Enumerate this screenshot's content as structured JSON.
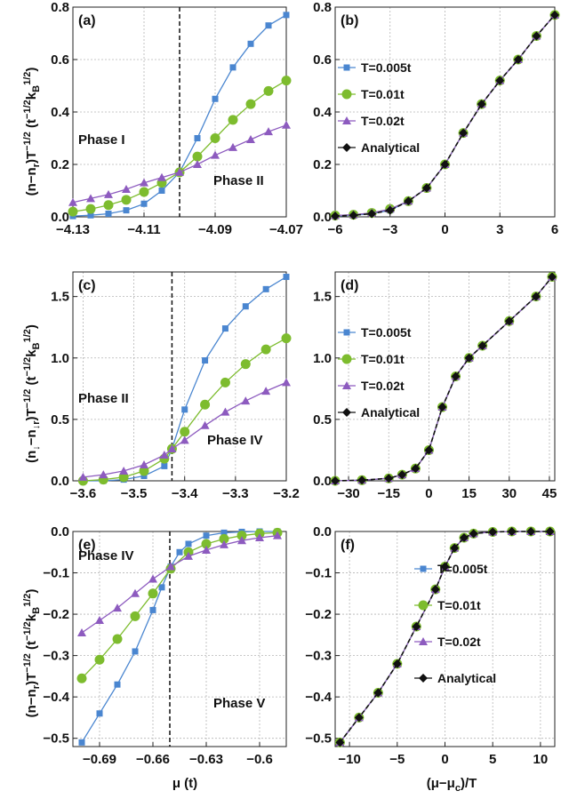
{
  "chart_data": [
    {
      "panel": "(a)",
      "type": "line",
      "xlim": [
        -4.13,
        -4.07
      ],
      "ylim": [
        0,
        0.8
      ],
      "xticks": [
        -4.13,
        -4.11,
        -4.09,
        -4.07
      ],
      "xtick_labels": [
        "−4.13",
        "−4.11",
        "−4.09",
        "−4.07"
      ],
      "yticks": [
        0,
        0.2,
        0.4,
        0.6,
        0.8
      ],
      "ytick_labels": [
        "0.0",
        "0.2",
        "0.4",
        "0.6",
        "0.8"
      ],
      "critical_x": -4.1,
      "annotations": [
        "Phase I",
        "Phase II"
      ],
      "grid": true,
      "series": [
        {
          "color": "#4a86d0",
          "marker": "square",
          "x": [
            -4.13,
            -4.125,
            -4.12,
            -4.115,
            -4.11,
            -4.105,
            -4.1,
            -4.095,
            -4.09,
            -4.085,
            -4.08,
            -4.075,
            -4.07
          ],
          "y": [
            0.003,
            0.006,
            0.012,
            0.025,
            0.05,
            0.1,
            0.17,
            0.3,
            0.45,
            0.57,
            0.66,
            0.73,
            0.77
          ]
        },
        {
          "color": "#7dbc2e",
          "marker": "circle",
          "x": [
            -4.13,
            -4.125,
            -4.12,
            -4.115,
            -4.11,
            -4.105,
            -4.1,
            -4.095,
            -4.09,
            -4.085,
            -4.08,
            -4.075,
            -4.07
          ],
          "y": [
            0.02,
            0.03,
            0.045,
            0.065,
            0.095,
            0.13,
            0.17,
            0.23,
            0.3,
            0.37,
            0.43,
            0.48,
            0.52
          ]
        },
        {
          "color": "#8d5bbf",
          "marker": "triangle",
          "x": [
            -4.13,
            -4.125,
            -4.12,
            -4.115,
            -4.11,
            -4.105,
            -4.1,
            -4.095,
            -4.09,
            -4.085,
            -4.08,
            -4.075,
            -4.07
          ],
          "y": [
            0.055,
            0.07,
            0.085,
            0.105,
            0.13,
            0.15,
            0.17,
            0.2,
            0.235,
            0.265,
            0.295,
            0.325,
            0.35
          ]
        }
      ]
    },
    {
      "panel": "(b)",
      "type": "line",
      "xlim": [
        -6,
        6
      ],
      "ylim": [
        0,
        0.8
      ],
      "xticks": [
        -6,
        -3,
        0,
        3,
        6
      ],
      "xtick_labels": [
        "−6",
        "−3",
        "0",
        "3",
        "6"
      ],
      "yticks": [
        0,
        0.2,
        0.4,
        0.6,
        0.8
      ],
      "ytick_labels": [
        "0.0",
        "0.2",
        "0.4",
        "0.6",
        "0.8"
      ],
      "grid": true,
      "legend_position": "left",
      "series": [
        {
          "name": "T=0.005t",
          "color": "#4a86d0",
          "marker": "square",
          "x": [
            -6,
            -5,
            -4,
            -3,
            -2,
            -1,
            0,
            1,
            2,
            3,
            4,
            5,
            6
          ],
          "y": [
            0.003,
            0.006,
            0.012,
            0.025,
            0.06,
            0.11,
            0.2,
            0.32,
            0.43,
            0.52,
            0.6,
            0.69,
            0.77
          ]
        },
        {
          "name": "T=0.01t",
          "color": "#7dbc2e",
          "marker": "circle",
          "x": [
            -6,
            -5,
            -4,
            -3,
            -2,
            -1,
            0,
            1,
            2,
            3,
            4,
            5,
            6
          ],
          "y": [
            0.005,
            0.008,
            0.015,
            0.03,
            0.06,
            0.11,
            0.2,
            0.32,
            0.43,
            0.52,
            0.6,
            0.69,
            0.77
          ]
        },
        {
          "name": "T=0.02t",
          "color": "#8d5bbf",
          "marker": "triangle",
          "x": [
            -6,
            -5,
            -4,
            -3,
            -2,
            -1,
            0,
            1,
            2,
            3,
            4,
            5,
            6
          ],
          "y": [
            0.005,
            0.008,
            0.015,
            0.03,
            0.06,
            0.11,
            0.2,
            0.32,
            0.43,
            0.52,
            0.6,
            0.69,
            0.77
          ]
        },
        {
          "name": "Analytical",
          "color": "#111111",
          "marker": "diamond",
          "x": [
            -6,
            -5,
            -4,
            -3,
            -2,
            -1,
            0,
            1,
            2,
            3,
            4,
            5,
            6
          ],
          "y": [
            0.003,
            0.006,
            0.012,
            0.025,
            0.06,
            0.11,
            0.2,
            0.32,
            0.43,
            0.52,
            0.6,
            0.69,
            0.77
          ]
        }
      ]
    },
    {
      "panel": "(c)",
      "type": "line",
      "xlim": [
        -3.62,
        -3.2
      ],
      "ylim": [
        0,
        1.7
      ],
      "xticks": [
        -3.6,
        -3.5,
        -3.4,
        -3.3,
        -3.2
      ],
      "xtick_labels": [
        "−3.6",
        "−3.5",
        "−3.4",
        "−3.3",
        "−3.2"
      ],
      "yticks": [
        0,
        0.5,
        1.0,
        1.5
      ],
      "ytick_labels": [
        "0.0",
        "0.5",
        "1.0",
        "1.5"
      ],
      "critical_x": -3.425,
      "annotations": [
        "Phase II",
        "Phase IV"
      ],
      "grid": true,
      "series": [
        {
          "color": "#4a86d0",
          "marker": "square",
          "x": [
            -3.6,
            -3.56,
            -3.52,
            -3.48,
            -3.44,
            -3.425,
            -3.4,
            -3.36,
            -3.32,
            -3.28,
            -3.24,
            -3.2
          ],
          "y": [
            0.0,
            0.0,
            0.01,
            0.04,
            0.12,
            0.26,
            0.58,
            0.98,
            1.24,
            1.42,
            1.56,
            1.66
          ]
        },
        {
          "color": "#7dbc2e",
          "marker": "circle",
          "x": [
            -3.6,
            -3.56,
            -3.52,
            -3.48,
            -3.44,
            -3.425,
            -3.4,
            -3.36,
            -3.32,
            -3.28,
            -3.24,
            -3.2
          ],
          "y": [
            0.0,
            0.01,
            0.03,
            0.08,
            0.18,
            0.26,
            0.4,
            0.62,
            0.8,
            0.95,
            1.07,
            1.16
          ]
        },
        {
          "color": "#8d5bbf",
          "marker": "triangle",
          "x": [
            -3.6,
            -3.56,
            -3.52,
            -3.48,
            -3.44,
            -3.425,
            -3.4,
            -3.36,
            -3.32,
            -3.28,
            -3.24,
            -3.2
          ],
          "y": [
            0.03,
            0.05,
            0.08,
            0.13,
            0.21,
            0.26,
            0.33,
            0.45,
            0.56,
            0.65,
            0.73,
            0.8
          ]
        }
      ]
    },
    {
      "panel": "(d)",
      "type": "line",
      "xlim": [
        -35,
        47
      ],
      "ylim": [
        0,
        1.7
      ],
      "xticks": [
        -30,
        -15,
        0,
        15,
        30,
        45
      ],
      "xtick_labels": [
        "−30",
        "−15",
        "0",
        "15",
        "30",
        "45"
      ],
      "yticks": [
        0,
        0.5,
        1.0,
        1.5
      ],
      "ytick_labels": [
        "0.0",
        "0.5",
        "1.0",
        "1.5"
      ],
      "grid": true,
      "legend_position": "left",
      "series": [
        {
          "name": "T=0.005t",
          "color": "#4a86d0",
          "marker": "square",
          "x": [
            -35,
            -25,
            -15,
            -10,
            -5,
            0,
            5,
            10,
            15,
            20,
            30,
            40,
            46
          ],
          "y": [
            0.0,
            0.005,
            0.02,
            0.05,
            0.1,
            0.25,
            0.6,
            0.85,
            1.0,
            1.1,
            1.3,
            1.5,
            1.66
          ]
        },
        {
          "name": "T=0.01t",
          "color": "#7dbc2e",
          "marker": "circle",
          "x": [
            -35,
            -25,
            -15,
            -10,
            -5,
            0,
            5,
            10,
            15,
            20,
            30,
            40,
            46
          ],
          "y": [
            0.0,
            0.005,
            0.02,
            0.05,
            0.1,
            0.25,
            0.6,
            0.85,
            1.0,
            1.1,
            1.3,
            1.5,
            1.66
          ]
        },
        {
          "name": "T=0.02t",
          "color": "#8d5bbf",
          "marker": "triangle",
          "x": [
            -35,
            -25,
            -15,
            -10,
            -5,
            0,
            5,
            10,
            15,
            20,
            30,
            40,
            46
          ],
          "y": [
            0.0,
            0.005,
            0.02,
            0.05,
            0.1,
            0.25,
            0.6,
            0.85,
            1.0,
            1.1,
            1.3,
            1.5,
            1.66
          ]
        },
        {
          "name": "Analytical",
          "color": "#111111",
          "marker": "diamond",
          "x": [
            -35,
            -25,
            -15,
            -10,
            -5,
            0,
            5,
            10,
            15,
            20,
            30,
            40,
            46
          ],
          "y": [
            0.0,
            0.005,
            0.02,
            0.05,
            0.1,
            0.25,
            0.6,
            0.85,
            1.0,
            1.1,
            1.3,
            1.5,
            1.66
          ]
        }
      ]
    },
    {
      "panel": "(e)",
      "type": "line",
      "xlim": [
        -0.705,
        -0.585
      ],
      "ylim": [
        -0.52,
        0.0
      ],
      "xticks": [
        -0.69,
        -0.66,
        -0.63,
        -0.6
      ],
      "xtick_labels": [
        "−0.69",
        "−0.66",
        "−0.63",
        "−0.6"
      ],
      "yticks": [
        -0.5,
        -0.4,
        -0.3,
        -0.2,
        -0.1,
        0.0
      ],
      "ytick_labels": [
        "−0.5",
        "−0.4",
        "−0.3",
        "−0.2",
        "−0.1",
        "0.0"
      ],
      "critical_x": -0.6505,
      "xlabel": "μ (t)",
      "annotations": [
        "Phase IV",
        "Phase V"
      ],
      "grid": true,
      "series": [
        {
          "color": "#4a86d0",
          "marker": "square",
          "x": [
            -0.7,
            -0.69,
            -0.68,
            -0.67,
            -0.66,
            -0.655,
            -0.65,
            -0.645,
            -0.64,
            -0.63,
            -0.62,
            -0.61,
            -0.6,
            -0.59
          ],
          "y": [
            -0.51,
            -0.44,
            -0.37,
            -0.29,
            -0.19,
            -0.135,
            -0.085,
            -0.05,
            -0.03,
            -0.01,
            -0.003,
            -0.001,
            -0.0,
            -0.0
          ]
        },
        {
          "color": "#7dbc2e",
          "marker": "circle",
          "x": [
            -0.7,
            -0.69,
            -0.68,
            -0.67,
            -0.66,
            -0.65,
            -0.64,
            -0.63,
            -0.62,
            -0.61,
            -0.6,
            -0.59
          ],
          "y": [
            -0.355,
            -0.31,
            -0.26,
            -0.205,
            -0.15,
            -0.09,
            -0.05,
            -0.03,
            -0.018,
            -0.01,
            -0.005,
            -0.003
          ]
        },
        {
          "color": "#8d5bbf",
          "marker": "triangle",
          "x": [
            -0.7,
            -0.69,
            -0.68,
            -0.67,
            -0.66,
            -0.65,
            -0.64,
            -0.63,
            -0.62,
            -0.61,
            -0.6,
            -0.59
          ],
          "y": [
            -0.245,
            -0.215,
            -0.185,
            -0.15,
            -0.115,
            -0.085,
            -0.06,
            -0.045,
            -0.032,
            -0.022,
            -0.015,
            -0.01
          ]
        }
      ]
    },
    {
      "panel": "(f)",
      "type": "line",
      "xlim": [
        -11.5,
        11.5
      ],
      "ylim": [
        -0.52,
        0.0
      ],
      "xticks": [
        -10,
        -5,
        0,
        5,
        10
      ],
      "xtick_labels": [
        "−10",
        "−5",
        "0",
        "5",
        "10"
      ],
      "yticks": [
        -0.5,
        -0.4,
        -0.3,
        -0.2,
        -0.1,
        0.0
      ],
      "ytick_labels": [
        "−0.5",
        "−0.4",
        "−0.3",
        "−0.2",
        "−0.1",
        "0.0"
      ],
      "xlabel": "(μ−μ_c)/T",
      "grid": true,
      "legend_position": "right",
      "series": [
        {
          "name": "T=0.005t",
          "color": "#4a86d0",
          "marker": "square",
          "x": [
            -11,
            -9,
            -7,
            -5,
            -3,
            -1,
            0,
            1,
            2,
            3,
            5,
            7,
            9,
            11
          ],
          "y": [
            -0.51,
            -0.45,
            -0.39,
            -0.32,
            -0.23,
            -0.14,
            -0.085,
            -0.04,
            -0.015,
            -0.005,
            -0.001,
            -0.0,
            -0.0,
            -0.0
          ]
        },
        {
          "name": "T=0.01t",
          "color": "#7dbc2e",
          "marker": "circle",
          "x": [
            -11,
            -9,
            -7,
            -5,
            -3,
            -1,
            0,
            1,
            2,
            3,
            5,
            7,
            9,
            11
          ],
          "y": [
            -0.51,
            -0.45,
            -0.39,
            -0.32,
            -0.23,
            -0.14,
            -0.085,
            -0.04,
            -0.015,
            -0.005,
            -0.001,
            -0.0,
            -0.0,
            -0.0
          ]
        },
        {
          "name": "T=0.02t",
          "color": "#8d5bbf",
          "marker": "triangle",
          "x": [
            -11,
            -9,
            -7,
            -5,
            -3,
            -1,
            0,
            1,
            2,
            3,
            5,
            7,
            9,
            11
          ],
          "y": [
            -0.51,
            -0.45,
            -0.39,
            -0.32,
            -0.23,
            -0.14,
            -0.085,
            -0.04,
            -0.015,
            -0.005,
            -0.001,
            -0.0,
            -0.0,
            -0.0
          ]
        },
        {
          "name": "Analytical",
          "color": "#111111",
          "marker": "diamond",
          "x": [
            -11,
            -9,
            -7,
            -5,
            -3,
            -1,
            0,
            1,
            2,
            3,
            5,
            7,
            9,
            11
          ],
          "y": [
            -0.51,
            -0.45,
            -0.39,
            -0.32,
            -0.23,
            -0.14,
            -0.085,
            -0.04,
            -0.015,
            -0.005,
            -0.001,
            -0.0,
            -0.0,
            -0.0
          ]
        }
      ]
    }
  ],
  "ylabels": {
    "row1": {
      "main": "(n−n",
      "sub": "r",
      "mid": ")T",
      "sup": "−1/2",
      "unit_open": " (t",
      "unit_sup": "−1/2",
      "unit_k": "k",
      "unit_ksub": "B",
      "unit_ksup": "1/2",
      "unit_close": ")"
    },
    "row2": {
      "main": "(n",
      "sub": "↓",
      "minus": "−n",
      "sub2": "↓r",
      "mid": ")T",
      "sup": "−1/2",
      "unit_open": " (t",
      "unit_sup": "−1/2",
      "unit_k": "k",
      "unit_ksub": "B",
      "unit_ksup": "1/2",
      "unit_close": ")"
    },
    "row3": {
      "main": "(n−n",
      "sub": "r",
      "mid": ")T",
      "sup": "−1/2",
      "unit_open": " (t",
      "unit_sup": "−1/2",
      "unit_k": "k",
      "unit_ksub": "B",
      "unit_ksup": "1/2",
      "unit_close": ")"
    }
  }
}
